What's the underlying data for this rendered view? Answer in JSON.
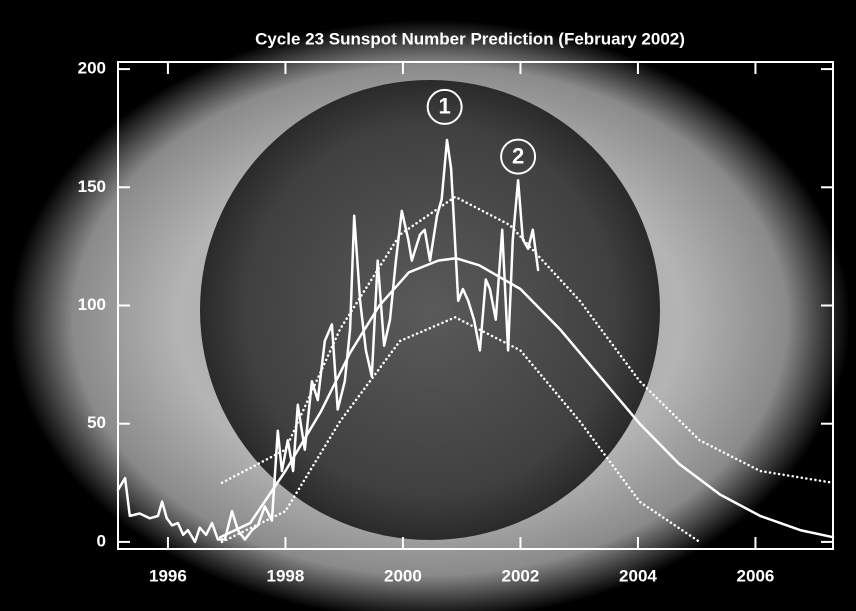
{
  "chart_data": {
    "type": "line",
    "title": "Cycle 23 Sunspot Number Prediction (February 2002)",
    "xlim": [
      1995.15,
      2007.32
    ],
    "ylim": [
      -3,
      203
    ],
    "xticks": [
      1996,
      1998,
      2000,
      2002,
      2004,
      2006
    ],
    "yticks": [
      0,
      50,
      100,
      150,
      200
    ],
    "series": [
      {
        "color": "#ffffff",
        "style": "solid",
        "width": 2.5,
        "x": [
          1995.15,
          1995.27,
          1995.35,
          1995.52,
          1995.69,
          1995.83,
          1995.9,
          1995.98,
          1996.07,
          1996.17,
          1996.26,
          1996.34,
          1996.46,
          1996.54,
          1996.65,
          1996.75,
          1996.85,
          1996.97,
          1997.09,
          1997.19,
          1997.31,
          1997.43,
          1997.53,
          1997.65,
          1997.77,
          1997.87,
          1997.94,
          1998.04,
          1998.13,
          1998.21,
          1998.33,
          1998.45,
          1998.55,
          1998.67,
          1998.79,
          1998.89,
          1999.01,
          1999.1,
          1999.17,
          1999.27,
          1999.37,
          1999.47,
          1999.57,
          1999.68,
          1999.78,
          1999.88,
          1999.98,
          2000.09,
          2000.15,
          2000.29,
          2000.37,
          2000.46,
          2000.58,
          2000.66,
          2000.75,
          2000.82,
          2000.94,
          2001.02,
          2001.11,
          2001.21,
          2001.31,
          2001.41,
          2001.48,
          2001.58,
          2001.69,
          2001.79,
          2001.87,
          2001.96,
          2002.04,
          2002.13,
          2002.21,
          2002.3
        ],
        "values": [
          22,
          27,
          11,
          12,
          10,
          11,
          17,
          10,
          7,
          8,
          3,
          5,
          0,
          6,
          3,
          8,
          1,
          1,
          13,
          5,
          1,
          5,
          7,
          15,
          9,
          47,
          30,
          43,
          30,
          58,
          39,
          68,
          60,
          85,
          92,
          56,
          68,
          90,
          138,
          102,
          81,
          70,
          119,
          83,
          94,
          119,
          140,
          128,
          119,
          130,
          132,
          119,
          138,
          145,
          170,
          158,
          102,
          107,
          102,
          94,
          81,
          111,
          107,
          94,
          132,
          81,
          128,
          153,
          128,
          124,
          132,
          115
        ]
      },
      {
        "color": "#ffffff",
        "style": "solid",
        "width": 2.5,
        "x": [
          1996.89,
          1997.4,
          1998.0,
          1998.6,
          1999.1,
          1999.6,
          2000.1,
          2000.6,
          2000.9,
          2001.3,
          2002.0,
          2002.67,
          2003.35,
          2004.03,
          2004.7,
          2005.4,
          2006.08,
          2006.76,
          2007.32
        ],
        "values": [
          2,
          8,
          30,
          55,
          80,
          100,
          114,
          119,
          120,
          117,
          107,
          90,
          70,
          50,
          33,
          20,
          11,
          5,
          2
        ]
      },
      {
        "color": "#ffffff",
        "style": "dotted",
        "width": 2.5,
        "x": [
          1996.92,
          1998.0,
          1998.93,
          1999.95,
          2000.89,
          2001.82,
          2003.01,
          2004.03,
          2005.05,
          2006.08,
          2007.32
        ],
        "values": [
          25,
          39,
          90,
          130,
          146,
          134,
          102,
          68,
          43,
          30,
          25
        ]
      },
      {
        "color": "#ffffff",
        "style": "dotted",
        "width": 2.5,
        "x": [
          1996.92,
          1998.0,
          1998.93,
          1999.95,
          2000.89,
          2002.0,
          2003.01,
          2004.03,
          2005.05
        ],
        "values": [
          0,
          13,
          51,
          85,
          95,
          81,
          51,
          17,
          0
        ]
      }
    ],
    "annotations": [
      {
        "text": "1",
        "x": 2000.71,
        "y": 184
      },
      {
        "text": "2",
        "x": 2001.96,
        "y": 163
      }
    ]
  }
}
